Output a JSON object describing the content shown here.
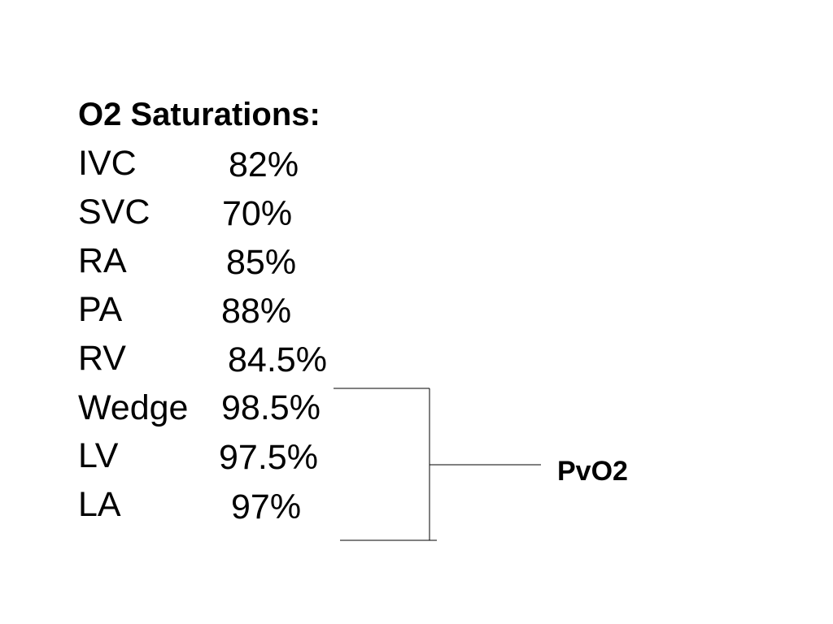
{
  "slide": {
    "title": "O2 Saturations:",
    "rows": [
      {
        "site": "IVC",
        "value": "82%"
      },
      {
        "site": "SVC",
        "value": "70%"
      },
      {
        "site": "RA",
        "value": "85%"
      },
      {
        "site": "PA",
        "value": "88%"
      },
      {
        "site": "RV",
        "value": "84.5%"
      },
      {
        "site": "Wedge",
        "value": "98.5%"
      },
      {
        "site": "LV",
        "value": "97.5%"
      },
      {
        "site": "LA",
        "value": "97%"
      }
    ],
    "bracket_label": "PvO2"
  }
}
